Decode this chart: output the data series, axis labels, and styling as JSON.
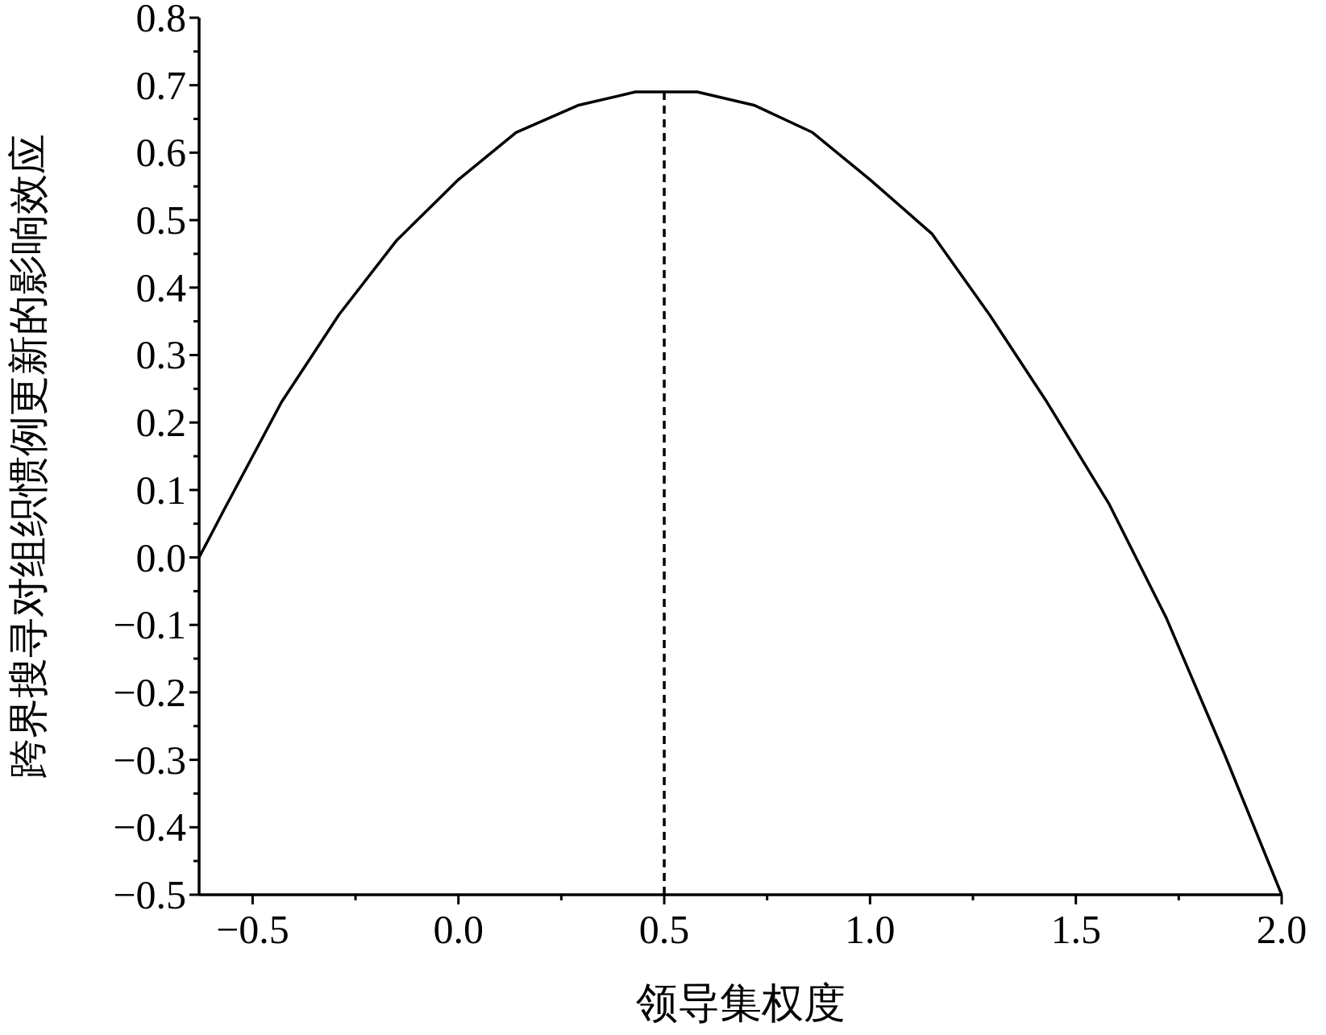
{
  "chart_data": {
    "type": "line",
    "xlabel": "领导集权度",
    "ylabel": "跨界搜寻对组织惯例更新的影响效应",
    "xlim": [
      -0.63,
      2.0
    ],
    "ylim": [
      -0.5,
      0.8
    ],
    "xticks": [
      {
        "value": -0.5,
        "label": "−0.5"
      },
      {
        "value": 0,
        "label": "0.0"
      },
      {
        "value": 0.5,
        "label": "0.5"
      },
      {
        "value": 1,
        "label": "1.0"
      },
      {
        "value": 1.5,
        "label": "1.5"
      },
      {
        "value": 2,
        "label": "2.0"
      }
    ],
    "yticks": [
      {
        "value": -0.5,
        "label": "−0.5"
      },
      {
        "value": -0.4,
        "label": "−0.4"
      },
      {
        "value": -0.3,
        "label": "−0.3"
      },
      {
        "value": -0.2,
        "label": "−0.2"
      },
      {
        "value": -0.1,
        "label": "−0.1"
      },
      {
        "value": 0,
        "label": "0.0"
      },
      {
        "value": 0.1,
        "label": "0.1"
      },
      {
        "value": 0.2,
        "label": "0.2"
      },
      {
        "value": 0.3,
        "label": "0.3"
      },
      {
        "value": 0.4,
        "label": "0.4"
      },
      {
        "value": 0.5,
        "label": "0.5"
      },
      {
        "value": 0.6,
        "label": "0.6"
      },
      {
        "value": 0.7,
        "label": "0.7"
      },
      {
        "value": 0.8,
        "label": "0.8"
      }
    ],
    "series": [
      {
        "color": "#000000",
        "x": [
          -0.63,
          -0.57,
          -0.43,
          -0.29,
          -0.15,
          0,
          0.14,
          0.29,
          0.43,
          0.58,
          0.72,
          0.86,
          1,
          1.15,
          1.29,
          1.43,
          1.58,
          1.72,
          1.86,
          2.0
        ],
        "values": [
          0.0,
          0.07,
          0.23,
          0.36,
          0.47,
          0.56,
          0.63,
          0.67,
          0.69,
          0.69,
          0.67,
          0.63,
          0.56,
          0.48,
          0.36,
          0.23,
          0.08,
          -0.09,
          -0.29,
          -0.5
        ]
      }
    ],
    "ref_lines": [
      {
        "axis": "x",
        "value": 0.5,
        "color": "#000000",
        "line_style": "dashed"
      }
    ],
    "marker": "none",
    "line_style": "solid"
  }
}
